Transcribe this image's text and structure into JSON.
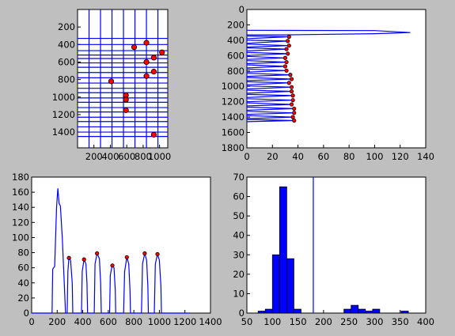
{
  "chart_data": [
    {
      "type": "scatter",
      "panel": "top-left",
      "xlim": [
        0,
        1100
      ],
      "ylim": [
        1580,
        0
      ],
      "xticks": [
        200,
        400,
        600,
        800,
        1000
      ],
      "xtick_labels": [
        "200",
        "400",
        "600",
        "800",
        "1000"
      ],
      "yticks": [
        200,
        400,
        600,
        800,
        1000,
        1200,
        1400
      ],
      "ytick_labels": [
        "200",
        "400",
        "600",
        "800",
        "1000",
        "1200",
        "1400"
      ],
      "vlines": [
        140,
        280,
        420,
        560,
        700,
        840,
        980
      ],
      "hlines": [
        330,
        400,
        470,
        520,
        560,
        610,
        660,
        720,
        780,
        840,
        900,
        950,
        1010,
        1060,
        1120,
        1170,
        1230,
        1280,
        1340,
        1400,
        1450
      ],
      "points": [
        {
          "x": 840,
          "y": 380
        },
        {
          "x": 690,
          "y": 430
        },
        {
          "x": 1030,
          "y": 490
        },
        {
          "x": 930,
          "y": 550
        },
        {
          "x": 840,
          "y": 600
        },
        {
          "x": 930,
          "y": 710
        },
        {
          "x": 840,
          "y": 760
        },
        {
          "x": 410,
          "y": 820
        },
        {
          "x": 590,
          "y": 980
        },
        {
          "x": 590,
          "y": 1030
        },
        {
          "x": 590,
          "y": 1150
        },
        {
          "x": 930,
          "y": 1430
        }
      ]
    },
    {
      "type": "line",
      "panel": "top-right",
      "xlim": [
        0,
        140
      ],
      "ylim": [
        1800,
        0
      ],
      "xticks": [
        0,
        20,
        40,
        60,
        80,
        100,
        120,
        140
      ],
      "xtick_labels": [
        "0",
        "20",
        "40",
        "60",
        "80",
        "100",
        "120",
        "140"
      ],
      "yticks": [
        0,
        200,
        400,
        600,
        800,
        1000,
        1200,
        1400,
        1600,
        1800
      ],
      "ytick_labels": [
        "0",
        "200",
        "400",
        "600",
        "800",
        "1000",
        "1200",
        "1400",
        "1600",
        "1800"
      ],
      "profile": [
        [
          0,
          270
        ],
        [
          100,
          275
        ],
        [
          128,
          300
        ],
        [
          100,
          315
        ],
        [
          30,
          330
        ],
        [
          0,
          330
        ],
        [
          0,
          345
        ],
        [
          33,
          355
        ],
        [
          0,
          380
        ],
        [
          0,
          400
        ],
        [
          32,
          410
        ],
        [
          0,
          440
        ],
        [
          0,
          450
        ],
        [
          33,
          470
        ],
        [
          0,
          490
        ],
        [
          0,
          500
        ],
        [
          31,
          515
        ],
        [
          0,
          540
        ],
        [
          0,
          560
        ],
        [
          32,
          575
        ],
        [
          0,
          600
        ],
        [
          0,
          610
        ],
        [
          30,
          630
        ],
        [
          0,
          650
        ],
        [
          0,
          665
        ],
        [
          31,
          685
        ],
        [
          0,
          705
        ],
        [
          0,
          720
        ],
        [
          30,
          740
        ],
        [
          0,
          760
        ],
        [
          0,
          775
        ],
        [
          31,
          795
        ],
        [
          0,
          815
        ],
        [
          0,
          830
        ],
        [
          34,
          850
        ],
        [
          0,
          870
        ],
        [
          0,
          885
        ],
        [
          35,
          905
        ],
        [
          0,
          925
        ],
        [
          0,
          940
        ],
        [
          33,
          955
        ],
        [
          0,
          980
        ],
        [
          0,
          995
        ],
        [
          35,
          1010
        ],
        [
          0,
          1035
        ],
        [
          0,
          1050
        ],
        [
          35,
          1065
        ],
        [
          0,
          1090
        ],
        [
          0,
          1105
        ],
        [
          36,
          1120
        ],
        [
          0,
          1145
        ],
        [
          0,
          1160
        ],
        [
          36,
          1180
        ],
        [
          0,
          1200
        ],
        [
          0,
          1215
        ],
        [
          35,
          1235
        ],
        [
          0,
          1255
        ],
        [
          0,
          1270
        ],
        [
          37,
          1290
        ],
        [
          0,
          1310
        ],
        [
          0,
          1325
        ],
        [
          37,
          1345
        ],
        [
          0,
          1365
        ],
        [
          0,
          1380
        ],
        [
          36,
          1400
        ],
        [
          0,
          1420
        ],
        [
          0,
          1430
        ],
        [
          37,
          1445
        ],
        [
          0,
          1460
        ]
      ],
      "points": [
        {
          "x": 33,
          "y": 355
        },
        {
          "x": 32,
          "y": 410
        },
        {
          "x": 33,
          "y": 470
        },
        {
          "x": 31,
          "y": 515
        },
        {
          "x": 32,
          "y": 575
        },
        {
          "x": 30,
          "y": 630
        },
        {
          "x": 31,
          "y": 685
        },
        {
          "x": 30,
          "y": 740
        },
        {
          "x": 31,
          "y": 795
        },
        {
          "x": 34,
          "y": 850
        },
        {
          "x": 35,
          "y": 905
        },
        {
          "x": 33,
          "y": 955
        },
        {
          "x": 35,
          "y": 1010
        },
        {
          "x": 35,
          "y": 1065
        },
        {
          "x": 36,
          "y": 1120
        },
        {
          "x": 36,
          "y": 1180
        },
        {
          "x": 35,
          "y": 1235
        },
        {
          "x": 37,
          "y": 1290
        },
        {
          "x": 37,
          "y": 1345
        },
        {
          "x": 36,
          "y": 1400
        },
        {
          "x": 37,
          "y": 1445
        }
      ]
    },
    {
      "type": "line",
      "panel": "bottom-left",
      "xlim": [
        0,
        1400
      ],
      "ylim": [
        0,
        180
      ],
      "xticks": [
        0,
        200,
        400,
        600,
        800,
        1000,
        1200,
        1400
      ],
      "xtick_labels": [
        "0",
        "200",
        "400",
        "600",
        "800",
        "1000",
        "1200",
        "1400"
      ],
      "yticks": [
        0,
        20,
        40,
        60,
        80,
        100,
        120,
        140,
        160,
        180
      ],
      "ytick_labels": [
        "0",
        "20",
        "40",
        "60",
        "80",
        "100",
        "120",
        "140",
        "160",
        "180"
      ],
      "profile": [
        [
          0,
          0
        ],
        [
          160,
          0
        ],
        [
          165,
          58
        ],
        [
          180,
          62
        ],
        [
          195,
          140
        ],
        [
          205,
          165
        ],
        [
          215,
          145
        ],
        [
          225,
          142
        ],
        [
          240,
          100
        ],
        [
          255,
          40
        ],
        [
          265,
          0
        ],
        [
          270,
          0
        ],
        [
          278,
          0
        ],
        [
          284,
          55
        ],
        [
          292,
          73
        ],
        [
          305,
          70
        ],
        [
          318,
          40
        ],
        [
          322,
          0
        ],
        [
          390,
          0
        ],
        [
          396,
          55
        ],
        [
          410,
          71
        ],
        [
          425,
          65
        ],
        [
          433,
          40
        ],
        [
          438,
          0
        ],
        [
          490,
          0
        ],
        [
          496,
          65
        ],
        [
          512,
          79
        ],
        [
          530,
          72
        ],
        [
          540,
          40
        ],
        [
          545,
          0
        ],
        [
          610,
          0
        ],
        [
          616,
          50
        ],
        [
          630,
          63
        ],
        [
          645,
          60
        ],
        [
          655,
          30
        ],
        [
          658,
          0
        ],
        [
          720,
          0
        ],
        [
          728,
          55
        ],
        [
          745,
          74
        ],
        [
          760,
          65
        ],
        [
          770,
          30
        ],
        [
          774,
          0
        ],
        [
          860,
          0
        ],
        [
          868,
          65
        ],
        [
          885,
          79
        ],
        [
          900,
          70
        ],
        [
          910,
          35
        ],
        [
          914,
          0
        ],
        [
          960,
          0
        ],
        [
          968,
          65
        ],
        [
          985,
          78
        ],
        [
          1000,
          70
        ],
        [
          1012,
          35
        ],
        [
          1016,
          0
        ],
        [
          1030,
          0
        ],
        [
          1100,
          0
        ],
        [
          1200,
          0
        ],
        [
          1240,
          0
        ]
      ],
      "points": [
        {
          "x": 292,
          "y": 73
        },
        {
          "x": 410,
          "y": 71
        },
        {
          "x": 512,
          "y": 79
        },
        {
          "x": 632,
          "y": 63
        },
        {
          "x": 745,
          "y": 74
        },
        {
          "x": 885,
          "y": 79
        },
        {
          "x": 985,
          "y": 78
        }
      ]
    },
    {
      "type": "bar",
      "panel": "bottom-right",
      "xlim": [
        50,
        400
      ],
      "ylim": [
        0,
        70
      ],
      "xticks": [
        50,
        100,
        150,
        200,
        250,
        300,
        350,
        400
      ],
      "xtick_labels": [
        "50",
        "100",
        "150",
        "200",
        "250",
        "300",
        "350",
        "400"
      ],
      "yticks": [
        0,
        10,
        20,
        30,
        40,
        50,
        60,
        70
      ],
      "ytick_labels": [
        "0",
        "10",
        "20",
        "30",
        "40",
        "50",
        "60",
        "70"
      ],
      "bin_width": 14,
      "bins": [
        {
          "x": 72,
          "value": 1
        },
        {
          "x": 86,
          "value": 2
        },
        {
          "x": 100,
          "value": 30
        },
        {
          "x": 114,
          "value": 65
        },
        {
          "x": 128,
          "value": 28
        },
        {
          "x": 142,
          "value": 2
        },
        {
          "x": 240,
          "value": 2
        },
        {
          "x": 254,
          "value": 4
        },
        {
          "x": 268,
          "value": 2
        },
        {
          "x": 282,
          "value": 1
        },
        {
          "x": 296,
          "value": 2
        },
        {
          "x": 352,
          "value": 1
        }
      ],
      "vline": 180
    }
  ]
}
